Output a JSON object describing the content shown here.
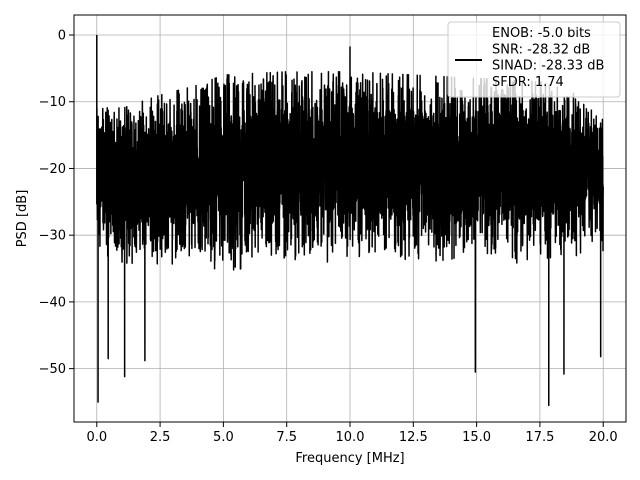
{
  "chart_data": {
    "type": "line",
    "xlabel": "Frequency [MHz]",
    "ylabel": "PSD [dB]",
    "xlim": [
      -0.9,
      20.9
    ],
    "ylim": [
      -58,
      3
    ],
    "x_ticks": [
      0.0,
      2.5,
      5.0,
      7.5,
      10.0,
      12.5,
      15.0,
      17.5,
      20.0
    ],
    "x_tick_labels": [
      "0.0",
      "2.5",
      "5.0",
      "7.5",
      "10.0",
      "12.5",
      "15.0",
      "17.5",
      "20.0"
    ],
    "y_ticks": [
      0,
      -10,
      -20,
      -30,
      -40,
      -50
    ],
    "y_tick_labels": [
      "0",
      "−10",
      "−20",
      "−30",
      "−40",
      "−50"
    ],
    "grid": true,
    "legend_position": "top-right",
    "legend": [
      "ENOB: -5.0 bits",
      "SNR: -28.32 dB",
      "SINAD: -28.33 dB",
      "SFDR: 1.74"
    ],
    "series": [
      {
        "color": "#000000",
        "x_range": [
          0.0,
          20.0
        ],
        "notable_points": [
          {
            "x": 0.0,
            "y": 0.0
          },
          {
            "x": 0.05,
            "y": -55.0
          },
          {
            "x": 0.45,
            "y": -48.5
          },
          {
            "x": 1.1,
            "y": -51.2
          },
          {
            "x": 1.9,
            "y": -48.8
          },
          {
            "x": 10.0,
            "y": -1.8
          },
          {
            "x": 14.95,
            "y": -50.5
          },
          {
            "x": 17.85,
            "y": -55.5
          },
          {
            "x": 18.45,
            "y": -50.8
          },
          {
            "x": 19.9,
            "y": -48.2
          }
        ],
        "envelope": [
          {
            "x": 0.0,
            "upper": -10.5,
            "lower": -35.0
          },
          {
            "x": 1.0,
            "upper": -11.0,
            "lower": -36.0
          },
          {
            "x": 2.5,
            "upper": -9.0,
            "lower": -36.0
          },
          {
            "x": 4.0,
            "upper": -7.5,
            "lower": -36.0
          },
          {
            "x": 5.0,
            "upper": -6.0,
            "lower": -37.0
          },
          {
            "x": 7.5,
            "upper": -5.5,
            "lower": -36.0
          },
          {
            "x": 10.0,
            "upper": -5.5,
            "lower": -35.5
          },
          {
            "x": 12.5,
            "upper": -6.0,
            "lower": -35.5
          },
          {
            "x": 15.0,
            "upper": -6.5,
            "lower": -36.0
          },
          {
            "x": 17.5,
            "upper": -7.0,
            "lower": -35.5
          },
          {
            "x": 20.0,
            "upper": -10.0,
            "lower": -34.0
          }
        ]
      }
    ]
  }
}
